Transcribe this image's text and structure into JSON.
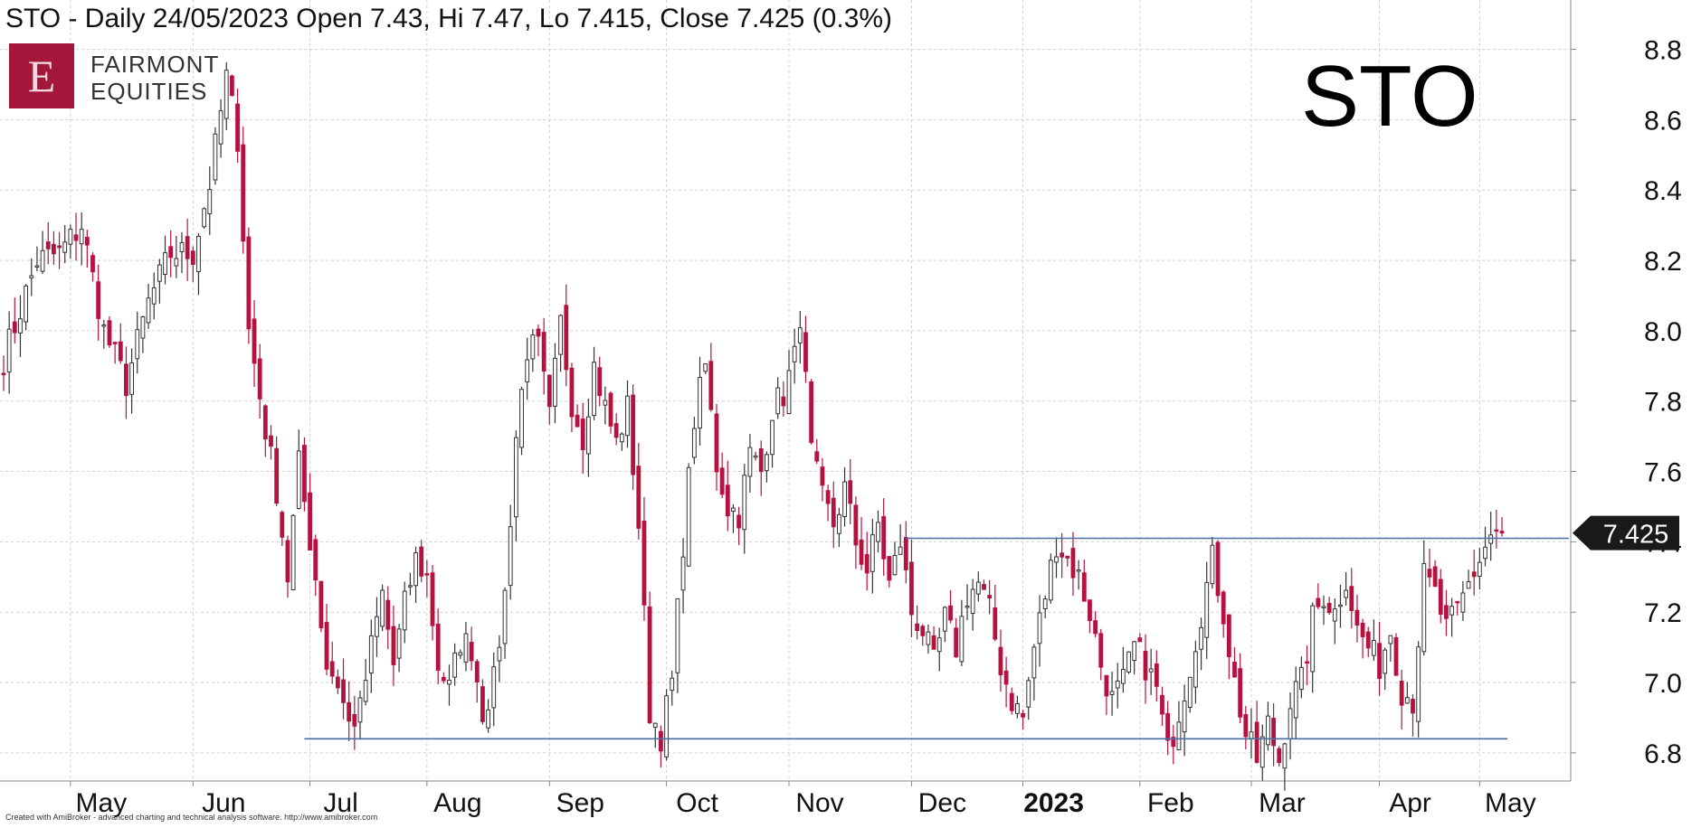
{
  "title": "STO - Daily 24/05/2023 Open 7.43, Hi 7.47, Lo 7.415, Close 7.425 (0.3%)",
  "logo": {
    "letter": "E",
    "line1": "FAIRMONT",
    "line2": "EQUITIES"
  },
  "watermark": "STO",
  "footer": "Created with AmiBroker - advanced charting and technical analysis software. http://www.amibroker.com",
  "colors": {
    "up": "#ffffff",
    "down": "#b5123f",
    "wick": "#333333",
    "line": "#4a6fa5",
    "grid": "#cfcfcf",
    "label_bg": "#1a1a1a"
  },
  "chart_data": {
    "type": "candlestick",
    "ticker": "STO",
    "period": "Daily",
    "ylim": [
      6.72,
      8.93
    ],
    "y_ticks": [
      6.8,
      7.0,
      7.2,
      7.4,
      7.6,
      7.8,
      8.0,
      8.2,
      8.4,
      8.6,
      8.8
    ],
    "y_tick_labels": [
      "6.8",
      "7.0",
      "7.2",
      "7.4",
      "7.6",
      "7.8",
      "8.0",
      "8.2",
      "8.4",
      "8.6",
      "8.8"
    ],
    "x_labels": [
      {
        "label": "May",
        "index": 12,
        "bold": false
      },
      {
        "label": "Jun",
        "index": 34,
        "bold": false
      },
      {
        "label": "Jul",
        "index": 55,
        "bold": false
      },
      {
        "label": "Aug",
        "index": 76,
        "bold": false
      },
      {
        "label": "Sep",
        "index": 98,
        "bold": false
      },
      {
        "label": "Oct",
        "index": 119,
        "bold": false
      },
      {
        "label": "Nov",
        "index": 141,
        "bold": false
      },
      {
        "label": "Dec",
        "index": 163,
        "bold": false
      },
      {
        "label": "2023",
        "index": 183,
        "bold": true
      },
      {
        "label": "Feb",
        "index": 204,
        "bold": false
      },
      {
        "label": "Mar",
        "index": 224,
        "bold": false
      },
      {
        "label": "Apr",
        "index": 247,
        "bold": false
      },
      {
        "label": "May",
        "index": 265,
        "bold": false
      }
    ],
    "last_price_label": "7.425",
    "last": {
      "date": "24/05/2023",
      "open": 7.43,
      "high": 7.47,
      "low": 7.415,
      "close": 7.425,
      "change": "0.3%"
    },
    "horizontal_lines": [
      {
        "value": 7.41,
        "from_index": 162,
        "to_index": 281
      },
      {
        "value": 6.84,
        "from_index": 54,
        "to_index": 270
      }
    ],
    "anchors": [
      [
        0,
        7.92
      ],
      [
        6,
        8.2
      ],
      [
        10,
        8.22
      ],
      [
        14,
        8.3
      ],
      [
        18,
        8.0
      ],
      [
        22,
        7.85
      ],
      [
        26,
        8.08
      ],
      [
        30,
        8.22
      ],
      [
        34,
        8.22
      ],
      [
        37,
        8.42
      ],
      [
        40,
        8.72
      ],
      [
        42,
        8.55
      ],
      [
        44,
        8.0
      ],
      [
        47,
        7.72
      ],
      [
        49,
        7.55
      ],
      [
        51,
        7.3
      ],
      [
        53,
        7.62
      ],
      [
        56,
        7.3
      ],
      [
        58,
        7.05
      ],
      [
        60,
        7.0
      ],
      [
        62,
        6.88
      ],
      [
        64,
        6.92
      ],
      [
        66,
        7.1
      ],
      [
        68,
        7.25
      ],
      [
        70,
        7.05
      ],
      [
        72,
        7.22
      ],
      [
        74,
        7.35
      ],
      [
        76,
        7.3
      ],
      [
        78,
        7.05
      ],
      [
        80,
        6.98
      ],
      [
        82,
        7.12
      ],
      [
        84,
        7.1
      ],
      [
        86,
        6.92
      ],
      [
        88,
        7.0
      ],
      [
        90,
        7.25
      ],
      [
        92,
        7.7
      ],
      [
        94,
        7.95
      ],
      [
        96,
        7.95
      ],
      [
        98,
        7.75
      ],
      [
        100,
        8.02
      ],
      [
        102,
        7.8
      ],
      [
        104,
        7.7
      ],
      [
        106,
        7.9
      ],
      [
        108,
        7.78
      ],
      [
        110,
        7.68
      ],
      [
        112,
        7.78
      ],
      [
        114,
        7.45
      ],
      [
        116,
        6.92
      ],
      [
        118,
        6.85
      ],
      [
        120,
        7.0
      ],
      [
        122,
        7.4
      ],
      [
        124,
        7.75
      ],
      [
        126,
        7.9
      ],
      [
        128,
        7.62
      ],
      [
        130,
        7.5
      ],
      [
        132,
        7.48
      ],
      [
        134,
        7.65
      ],
      [
        136,
        7.6
      ],
      [
        138,
        7.78
      ],
      [
        140,
        7.82
      ],
      [
        142,
        7.92
      ],
      [
        143,
        8.05
      ],
      [
        145,
        7.65
      ],
      [
        147,
        7.52
      ],
      [
        149,
        7.45
      ],
      [
        151,
        7.55
      ],
      [
        153,
        7.4
      ],
      [
        155,
        7.32
      ],
      [
        157,
        7.45
      ],
      [
        159,
        7.28
      ],
      [
        161,
        7.4
      ],
      [
        163,
        7.2
      ],
      [
        165,
        7.15
      ],
      [
        167,
        7.05
      ],
      [
        169,
        7.18
      ],
      [
        171,
        7.1
      ],
      [
        173,
        7.25
      ],
      [
        175,
        7.28
      ],
      [
        177,
        7.2
      ],
      [
        179,
        7.05
      ],
      [
        181,
        6.95
      ],
      [
        183,
        6.9
      ],
      [
        185,
        7.1
      ],
      [
        187,
        7.25
      ],
      [
        189,
        7.4
      ],
      [
        191,
        7.35
      ],
      [
        193,
        7.3
      ],
      [
        195,
        7.2
      ],
      [
        197,
        7.05
      ],
      [
        199,
        6.95
      ],
      [
        201,
        7.0
      ],
      [
        203,
        7.1
      ],
      [
        205,
        7.05
      ],
      [
        207,
        6.98
      ],
      [
        209,
        6.8
      ],
      [
        211,
        6.92
      ],
      [
        213,
        7.05
      ],
      [
        215,
        7.2
      ],
      [
        217,
        7.35
      ],
      [
        219,
        7.2
      ],
      [
        221,
        7.0
      ],
      [
        223,
        6.85
      ],
      [
        225,
        6.78
      ],
      [
        227,
        6.88
      ],
      [
        229,
        6.78
      ],
      [
        231,
        6.95
      ],
      [
        233,
        7.0
      ],
      [
        235,
        7.18
      ],
      [
        237,
        7.25
      ],
      [
        239,
        7.2
      ],
      [
        241,
        7.3
      ],
      [
        243,
        7.15
      ],
      [
        245,
        7.1
      ],
      [
        247,
        7.05
      ],
      [
        249,
        7.15
      ],
      [
        251,
        6.98
      ],
      [
        253,
        6.95
      ],
      [
        255,
        7.3
      ],
      [
        257,
        7.25
      ],
      [
        259,
        7.15
      ],
      [
        261,
        7.2
      ],
      [
        263,
        7.28
      ],
      [
        265,
        7.35
      ],
      [
        267,
        7.42
      ],
      [
        268,
        7.43
      ],
      [
        269,
        7.425
      ]
    ]
  }
}
